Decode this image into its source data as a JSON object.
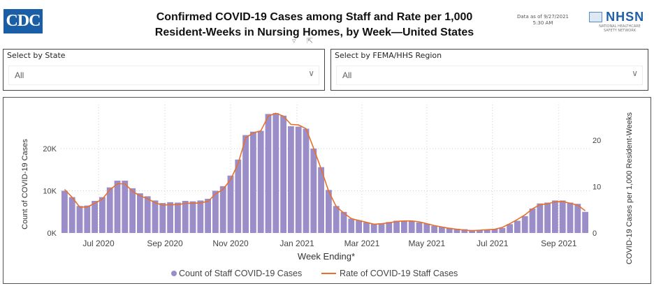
{
  "header": {
    "logo_left": "CDC",
    "title_line1": "Confirmed COVID-19 Cases among Staff and Rate per 1,000",
    "title_line2": "Resident-Weeks in Nursing Homes, by Week—United States",
    "as_of_line1": "Data as of 9/27/2021",
    "as_of_line2": "5:30 AM",
    "logo_right": "NHSN",
    "logo_right_sub1": "NATIONAL HEALTHCARE",
    "logo_right_sub2": "SAFETY NETWORK",
    "filter_icon": "filter-icon",
    "focus_icon": "focus-mode-icon"
  },
  "slicers": [
    {
      "label": "Select by State",
      "value": "All"
    },
    {
      "label": "Select by FEMA/HHS Region",
      "value": "All"
    }
  ],
  "colors": {
    "bar": "#9a8dc8",
    "line": "#e8702a",
    "grid": "#d0d0d0"
  },
  "chart_data": {
    "type": "bar",
    "title": "Confirmed COVID-19 Cases among Staff and Rate per 1,000 Resident-Weeks in Nursing Homes, by Week—United States",
    "xlabel": "Week Ending*",
    "ylabel": "Count of COVID-19 Cases",
    "y2label": "COVID-19 Cases per 1,000 Resident-Weeks",
    "ylim": [
      0,
      28000
    ],
    "y2lim": [
      0,
      25
    ],
    "yticks": [
      "0K",
      "10K",
      "20K"
    ],
    "yticks_values": [
      0,
      10000,
      20000
    ],
    "y2ticks": [
      "0",
      "10",
      "20"
    ],
    "y2ticks_values": [
      0,
      10,
      20
    ],
    "xtick_labels": [
      "Jul 2020",
      "Sep 2020",
      "Nov 2020",
      "Jan 2021",
      "Mar 2021",
      "May 2021",
      "Jul 2021",
      "Sep 2021"
    ],
    "xtick_indices": [
      4.5,
      13.3,
      22,
      30.8,
      39.4,
      48,
      56.7,
      65.5
    ],
    "grid": true,
    "legend_position": "bottom-center",
    "legend": [
      "Count of Staff COVID-19 Cases",
      "Rate of COVID-19 Staff Cases"
    ],
    "series": [
      {
        "name": "Count of Staff COVID-19 Cases",
        "kind": "bar",
        "values": [
          10000,
          8500,
          6400,
          6500,
          7600,
          8500,
          10800,
          12400,
          12400,
          10600,
          9400,
          8700,
          7700,
          7100,
          7300,
          7200,
          7600,
          7500,
          7700,
          8100,
          10000,
          11100,
          13600,
          17400,
          23200,
          24000,
          24200,
          28200,
          28400,
          27800,
          25300,
          25200,
          24700,
          20000,
          15600,
          10200,
          6400,
          5000,
          3400,
          3000,
          2500,
          2200,
          2300,
          2600,
          2900,
          2900,
          2800,
          2500,
          2200,
          1700,
          1400,
          1200,
          1000,
          900,
          700,
          700,
          800,
          900,
          1200,
          2100,
          2900,
          4000,
          5800,
          7000,
          7200,
          7700,
          7700,
          7200,
          6900,
          5000
        ]
      },
      {
        "name": "Rate of COVID-19 Staff Cases",
        "kind": "line",
        "values": [
          9.4,
          7.7,
          5.6,
          5.6,
          6.4,
          7.3,
          9.3,
          10.6,
          10.6,
          9.0,
          8.0,
          7.4,
          6.5,
          6.0,
          6.1,
          6.1,
          6.4,
          6.4,
          6.5,
          6.8,
          8.4,
          9.4,
          11.5,
          15.0,
          20.5,
          21.6,
          22.0,
          25.2,
          25.8,
          25.2,
          23.4,
          23.3,
          22.5,
          18.3,
          13.8,
          9.0,
          5.7,
          4.3,
          3.1,
          2.7,
          2.3,
          1.9,
          2.0,
          2.2,
          2.5,
          2.6,
          2.6,
          2.4,
          2.0,
          1.6,
          1.3,
          1.0,
          0.8,
          0.6,
          0.5,
          0.6,
          0.7,
          0.8,
          1.2,
          2.0,
          2.9,
          3.9,
          5.2,
          6.1,
          6.3,
          6.7,
          6.8,
          6.4,
          6.0,
          4.8
        ]
      }
    ]
  }
}
